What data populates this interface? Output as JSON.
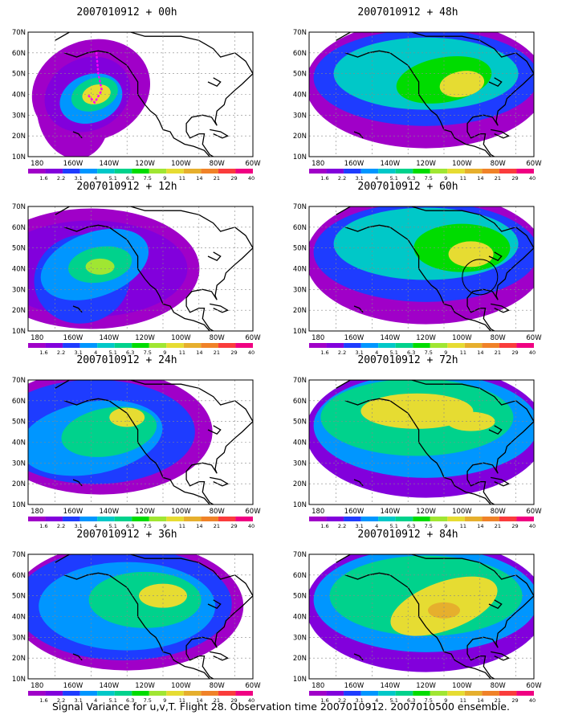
{
  "axes": {
    "lat_labels": [
      "70N",
      "60N",
      "50N",
      "40N",
      "30N",
      "20N",
      "10N"
    ],
    "lon_labels": [
      "180",
      "160W",
      "140W",
      "120W",
      "100W",
      "80W",
      "60W"
    ]
  },
  "colorbar": {
    "labels": [
      "1.6",
      "2.2",
      "3.1",
      "4",
      "5.1",
      "6.3",
      "7.5",
      "9",
      "11",
      "14",
      "21",
      "29",
      "40"
    ],
    "colors": [
      "#a000c8",
      "#8200dc",
      "#1e3cff",
      "#0096ff",
      "#00c8c8",
      "#00d28c",
      "#00dc00",
      "#a0e632",
      "#e6dc32",
      "#e6af2d",
      "#f08228",
      "#fa3c3c",
      "#f00082"
    ]
  },
  "panels": [
    {
      "title": "2007010912 + 00h"
    },
    {
      "title": "2007010912 + 12h"
    },
    {
      "title": "2007010912 + 24h"
    },
    {
      "title": "2007010912 + 36h"
    },
    {
      "title": "2007010912 + 48h"
    },
    {
      "title": "2007010912 + 60h"
    },
    {
      "title": "2007010912 + 72h"
    },
    {
      "title": "2007010912 + 84h"
    }
  ],
  "caption": "Signal Variance for u,v,T. Flight 28. Observation time 2007010912. 2007010500 ensemble."
}
